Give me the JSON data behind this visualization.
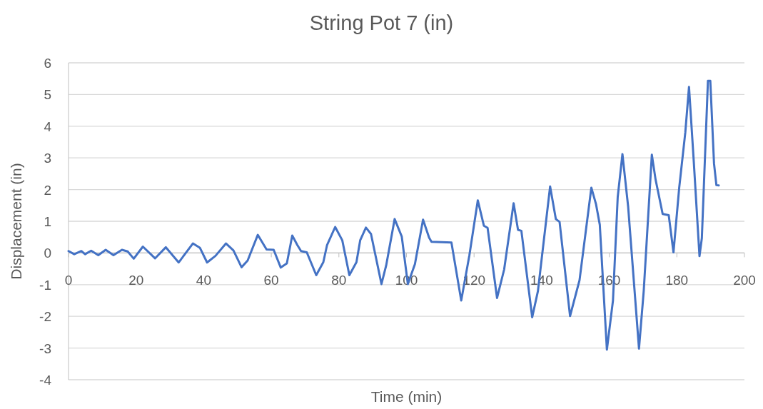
{
  "chart_data": {
    "type": "line",
    "title": "String Pot 7 (in)",
    "xlabel": "Time (min)",
    "ylabel": "Displacement (in)",
    "xlim": [
      0,
      200
    ],
    "xticks": [
      0,
      20,
      40,
      60,
      80,
      100,
      120,
      140,
      160,
      180,
      200
    ],
    "ylim": [
      -4,
      6
    ],
    "yticks": [
      -4,
      -3,
      -2,
      -1,
      0,
      1,
      2,
      3,
      4,
      5,
      6
    ],
    "grid": "y",
    "marker": "none",
    "line_style": "solid",
    "series": [
      {
        "color": "#4472c4",
        "x": [
          0,
          1.7,
          3.8,
          4.9,
          6.7,
          8.8,
          11,
          13.3,
          15.8,
          17.5,
          19.3,
          22,
          25.6,
          28.8,
          32.6,
          36.8,
          38.9,
          41,
          43.5,
          46.6,
          48.8,
          51.2,
          53,
          56,
          58.6,
          60.7,
          62.8,
          64.6,
          66.2,
          67.7,
          68.8,
          70.5,
          73.3,
          75.4,
          76.5,
          78.9,
          81,
          83.1,
          85.2,
          86.3,
          88,
          89.5,
          92.6,
          94,
          96.5,
          98.6,
          100.4,
          102.5,
          104.9,
          106.7,
          107.4,
          113.3,
          116.2,
          118.6,
          121.1,
          122.9,
          124,
          126.8,
          128.9,
          131.7,
          133,
          134,
          137.2,
          138.9,
          142.5,
          144.2,
          145.3,
          148.4,
          151.2,
          154.7,
          156.1,
          157.2,
          159.3,
          161.1,
          162.5,
          163.9,
          165.6,
          168.8,
          170.2,
          172.6,
          173.7,
          175.8,
          177.6,
          179,
          180.7,
          182.5,
          183.6,
          185,
          186.7,
          187.4,
          189.2,
          189.9,
          191,
          191.7,
          192.4
        ],
        "values": [
          0.06,
          -0.04,
          0.06,
          -0.04,
          0.07,
          -0.07,
          0.1,
          -0.07,
          0.1,
          0.05,
          -0.18,
          0.2,
          -0.17,
          0.18,
          -0.3,
          0.3,
          0.16,
          -0.3,
          -0.09,
          0.3,
          0.08,
          -0.45,
          -0.24,
          0.57,
          0.11,
          0.1,
          -0.46,
          -0.33,
          0.55,
          0.25,
          0.06,
          0.02,
          -0.7,
          -0.29,
          0.25,
          0.82,
          0.4,
          -0.7,
          -0.29,
          0.4,
          0.8,
          0.6,
          -0.98,
          -0.39,
          1.07,
          0.52,
          -0.98,
          -0.35,
          1.05,
          0.48,
          0.35,
          0.33,
          -1.5,
          -0.08,
          1.66,
          0.86,
          0.79,
          -1.42,
          -0.52,
          1.57,
          0.73,
          0.7,
          -2.03,
          -1.2,
          2.1,
          1.07,
          0.98,
          -1.99,
          -0.86,
          2.06,
          1.53,
          0.89,
          -3.05,
          -1.5,
          1.76,
          3.12,
          1.45,
          -3.02,
          -1.2,
          3.1,
          2.32,
          1.23,
          1.19,
          0.02,
          2.06,
          3.8,
          5.24,
          2.9,
          -0.1,
          0.47,
          5.43,
          5.43,
          2.82,
          2.14,
          2.13
        ]
      }
    ]
  }
}
